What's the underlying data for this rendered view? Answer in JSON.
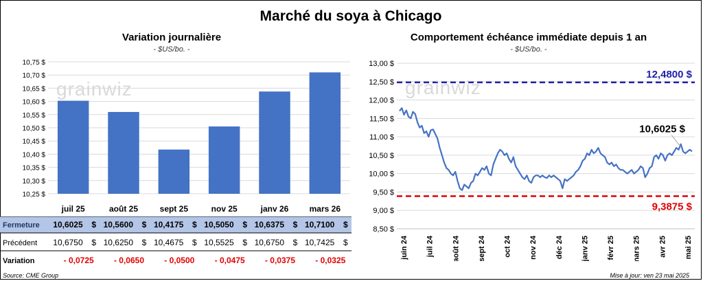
{
  "title": "Marché du soya à Chicago",
  "left_chart": {
    "subtitle": "Variation journalière",
    "unit": "- $US/bo. -",
    "watermark": "grainwiz"
  },
  "right_chart": {
    "subtitle": "Comportement échéance immédiate depuis 1 an",
    "unit": "- $US/bo. -",
    "watermark": "grainwiz",
    "max_label": "12,4800 $",
    "min_label": "9,3875 $",
    "last_label": "10,6025 $"
  },
  "table": {
    "rows": [
      {
        "label": "Fermeture",
        "values": [
          "10,6025",
          "10,5600",
          "10,4175",
          "10,5050",
          "10,6375",
          "10,7100"
        ],
        "suffix": "$"
      },
      {
        "label": "Précédent",
        "values": [
          "10,6750",
          "10,6250",
          "10,4675",
          "10,5525",
          "10,6750",
          "10,7425"
        ],
        "suffix": "$"
      },
      {
        "label": "Variation",
        "values": [
          "- 0,0725",
          "- 0,0650",
          "- 0,0500",
          "- 0,0475",
          "- 0,0375",
          "- 0,0325"
        ],
        "suffix": ""
      }
    ]
  },
  "footer": {
    "source": "Source: CME Group",
    "updated": "Mise à jour: ven 23 mai 2025"
  },
  "colors": {
    "bar": "#4472C4",
    "line": "#4472C4",
    "max_line": "#1F1FA8",
    "min_line": "#E00000",
    "fermeture_bg": "#B4C6E7",
    "negative": "#E00000"
  },
  "chart_data": [
    {
      "type": "bar",
      "title": "Variation journalière",
      "ylabel": "$US/bo.",
      "categories": [
        "juil 25",
        "août 25",
        "sept 25",
        "nov 25",
        "janv 26",
        "mars 26"
      ],
      "values": [
        10.6025,
        10.56,
        10.4175,
        10.505,
        10.6375,
        10.71
      ],
      "ylim": [
        10.25,
        10.75
      ],
      "yticks": [
        "10,25 $",
        "10,30 $",
        "10,35 $",
        "10,40 $",
        "10,45 $",
        "10,50 $",
        "10,55 $",
        "10,60 $",
        "10,65 $",
        "10,70 $",
        "10,75 $"
      ],
      "grid": true
    },
    {
      "type": "line",
      "title": "Comportement échéance immédiate depuis 1 an",
      "ylabel": "$US/bo.",
      "ylim": [
        8.5,
        13.0
      ],
      "yticks": [
        "8,50 $",
        "9,00 $",
        "9,50 $",
        "10,00 $",
        "10,50 $",
        "11,00 $",
        "11,50 $",
        "12,00 $",
        "12,50 $",
        "13,00 $"
      ],
      "xticks": [
        "juin 24",
        "juil 24",
        "août 24",
        "sept 24",
        "oct 24",
        "nov 24",
        "déc 24",
        "janv 25",
        "févr 25",
        "mars 25",
        "avr 25",
        "mai 25"
      ],
      "grid": true,
      "reference_lines": [
        {
          "value": 12.48,
          "label": "12,4800 $"
        },
        {
          "value": 9.3875,
          "label": "9,3875 $"
        }
      ],
      "last_value": 10.6025,
      "series": [
        {
          "values": [
            11.7,
            11.78,
            11.6,
            11.72,
            11.55,
            11.5,
            11.68,
            11.62,
            11.4,
            11.25,
            11.3,
            11.1,
            11.15,
            11.0,
            11.18,
            11.2,
            11.08,
            10.95,
            10.7,
            10.5,
            10.3,
            10.15,
            10.1,
            10.0,
            9.95,
            10.05,
            9.8,
            9.6,
            9.55,
            9.7,
            9.65,
            9.6,
            9.75,
            9.8,
            10.0,
            9.95,
            10.05,
            10.15,
            10.1,
            10.2,
            10.0,
            9.95,
            10.25,
            10.4,
            10.55,
            10.65,
            10.6,
            10.5,
            10.55,
            10.4,
            10.3,
            10.45,
            10.2,
            10.1,
            10.0,
            9.9,
            9.85,
            9.95,
            9.8,
            9.75,
            9.9,
            9.95,
            9.95,
            9.9,
            9.95,
            9.9,
            9.88,
            9.95,
            9.9,
            9.95,
            9.9,
            9.85,
            9.8,
            9.6,
            9.85,
            9.8,
            9.85,
            9.9,
            9.95,
            10.05,
            10.1,
            10.2,
            10.35,
            10.4,
            10.55,
            10.5,
            10.65,
            10.55,
            10.6,
            10.7,
            10.55,
            10.5,
            10.45,
            10.3,
            10.25,
            10.3,
            10.2,
            10.25,
            10.15,
            10.1,
            10.1,
            10.05,
            10.0,
            10.05,
            10.1,
            10.0,
            10.05,
            10.1,
            10.2,
            10.15,
            9.9,
            10.0,
            10.15,
            10.2,
            10.45,
            10.5,
            10.4,
            10.55,
            10.5,
            10.35,
            10.5,
            10.55,
            10.5,
            10.6,
            10.7,
            10.65,
            10.8,
            10.6,
            10.55,
            10.6,
            10.65,
            10.6025
          ]
        }
      ]
    }
  ]
}
